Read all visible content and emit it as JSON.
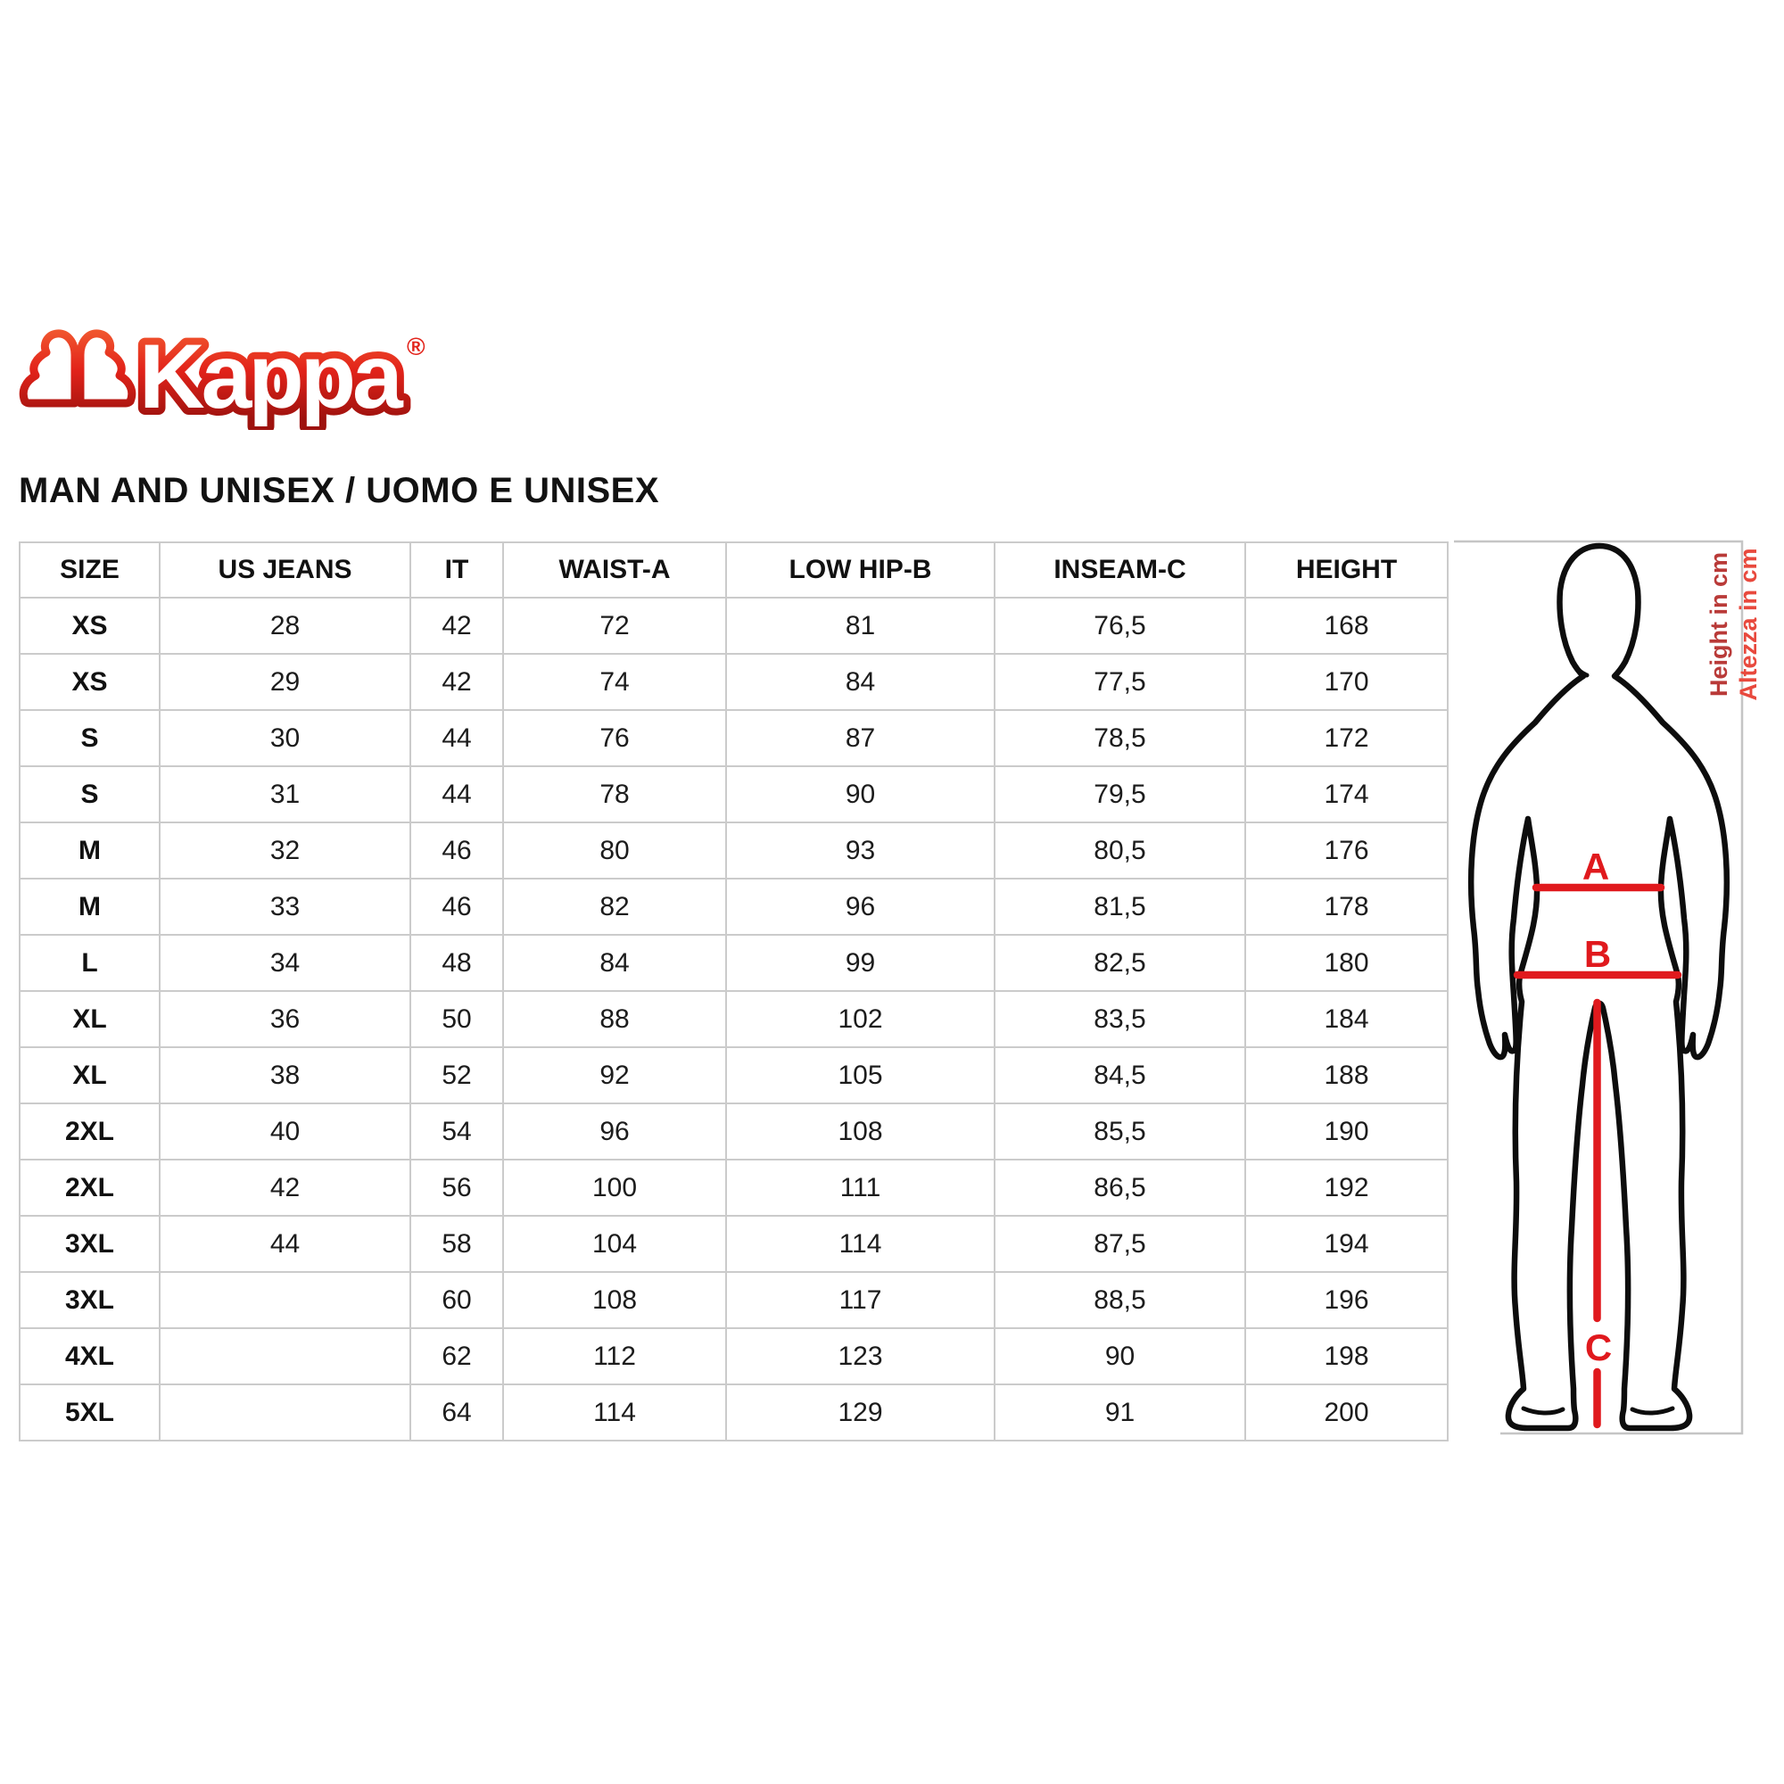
{
  "logo": {
    "brand": "Kappa",
    "registered": "®"
  },
  "page": {
    "title": "MAN AND UNISEX / UOMO E UNISEX"
  },
  "table": {
    "columns": [
      "SIZE",
      "US JEANS",
      "IT",
      "WAIST-A",
      "LOW HIP-B",
      "INSEAM-C",
      "HEIGHT"
    ],
    "rows": [
      [
        "XS",
        "28",
        "42",
        "72",
        "81",
        "76,5",
        "168"
      ],
      [
        "XS",
        "29",
        "42",
        "74",
        "84",
        "77,5",
        "170"
      ],
      [
        "S",
        "30",
        "44",
        "76",
        "87",
        "78,5",
        "172"
      ],
      [
        "S",
        "31",
        "44",
        "78",
        "90",
        "79,5",
        "174"
      ],
      [
        "M",
        "32",
        "46",
        "80",
        "93",
        "80,5",
        "176"
      ],
      [
        "M",
        "33",
        "46",
        "82",
        "96",
        "81,5",
        "178"
      ],
      [
        "L",
        "34",
        "48",
        "84",
        "99",
        "82,5",
        "180"
      ],
      [
        "XL",
        "36",
        "50",
        "88",
        "102",
        "83,5",
        "184"
      ],
      [
        "XL",
        "38",
        "52",
        "92",
        "105",
        "84,5",
        "188"
      ],
      [
        "2XL",
        "40",
        "54",
        "96",
        "108",
        "85,5",
        "190"
      ],
      [
        "2XL",
        "42",
        "56",
        "100",
        "111",
        "86,5",
        "192"
      ],
      [
        "3XL",
        "44",
        "58",
        "104",
        "114",
        "87,5",
        "194"
      ],
      [
        "3XL",
        "",
        "60",
        "108",
        "117",
        "88,5",
        "196"
      ],
      [
        "4XL",
        "",
        "62",
        "112",
        "123",
        "90",
        "198"
      ],
      [
        "5XL",
        "",
        "64",
        "114",
        "129",
        "91",
        "200"
      ]
    ]
  },
  "figure": {
    "measure_labels": {
      "a": "A",
      "b": "B",
      "c": "C"
    },
    "height_note_en": "Height in cm",
    "height_note_it": "Altezza in cm"
  },
  "colors": {
    "measure_red": "#e0191d",
    "logo_red": "#e2231a",
    "logo_dark_red": "#9e120e",
    "note_red_dark": "#b93a38",
    "note_red_bright": "#e8493d",
    "table_border_gray": "#cbcbcb"
  }
}
